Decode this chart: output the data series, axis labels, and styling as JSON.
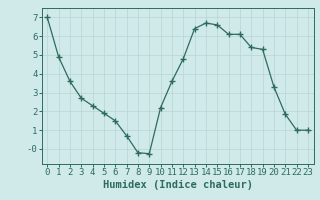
{
  "x": [
    0,
    1,
    2,
    3,
    4,
    5,
    6,
    7,
    8,
    9,
    10,
    11,
    12,
    13,
    14,
    15,
    16,
    17,
    18,
    19,
    20,
    21,
    22,
    23
  ],
  "y": [
    7.0,
    4.9,
    3.6,
    2.7,
    2.3,
    1.9,
    1.5,
    0.7,
    -0.2,
    -0.25,
    2.2,
    3.6,
    4.8,
    6.4,
    6.7,
    6.6,
    6.1,
    6.1,
    5.4,
    5.3,
    3.3,
    1.85,
    1.0,
    1.0
  ],
  "line_color": "#2e6b5e",
  "marker": "+",
  "marker_size": 4,
  "marker_linewidth": 1.0,
  "bg_color": "#d0eaea",
  "grid_color": "#b8d4d4",
  "xlabel": "Humidex (Indice chaleur)",
  "xlim": [
    -0.5,
    23.5
  ],
  "ylim": [
    -0.8,
    7.5
  ],
  "yticks": [
    0,
    1,
    2,
    3,
    4,
    5,
    6,
    7
  ],
  "ytick_labels": [
    "-0",
    "1",
    "2",
    "3",
    "4",
    "5",
    "6",
    "7"
  ],
  "xticks": [
    0,
    1,
    2,
    3,
    4,
    5,
    6,
    7,
    8,
    9,
    10,
    11,
    12,
    13,
    14,
    15,
    16,
    17,
    18,
    19,
    20,
    21,
    22,
    23
  ],
  "tick_color": "#2e6b5e",
  "label_color": "#2e6b5e",
  "axis_color": "#2e6b5e",
  "xlabel_fontsize": 7.5,
  "tick_fontsize": 6.5
}
